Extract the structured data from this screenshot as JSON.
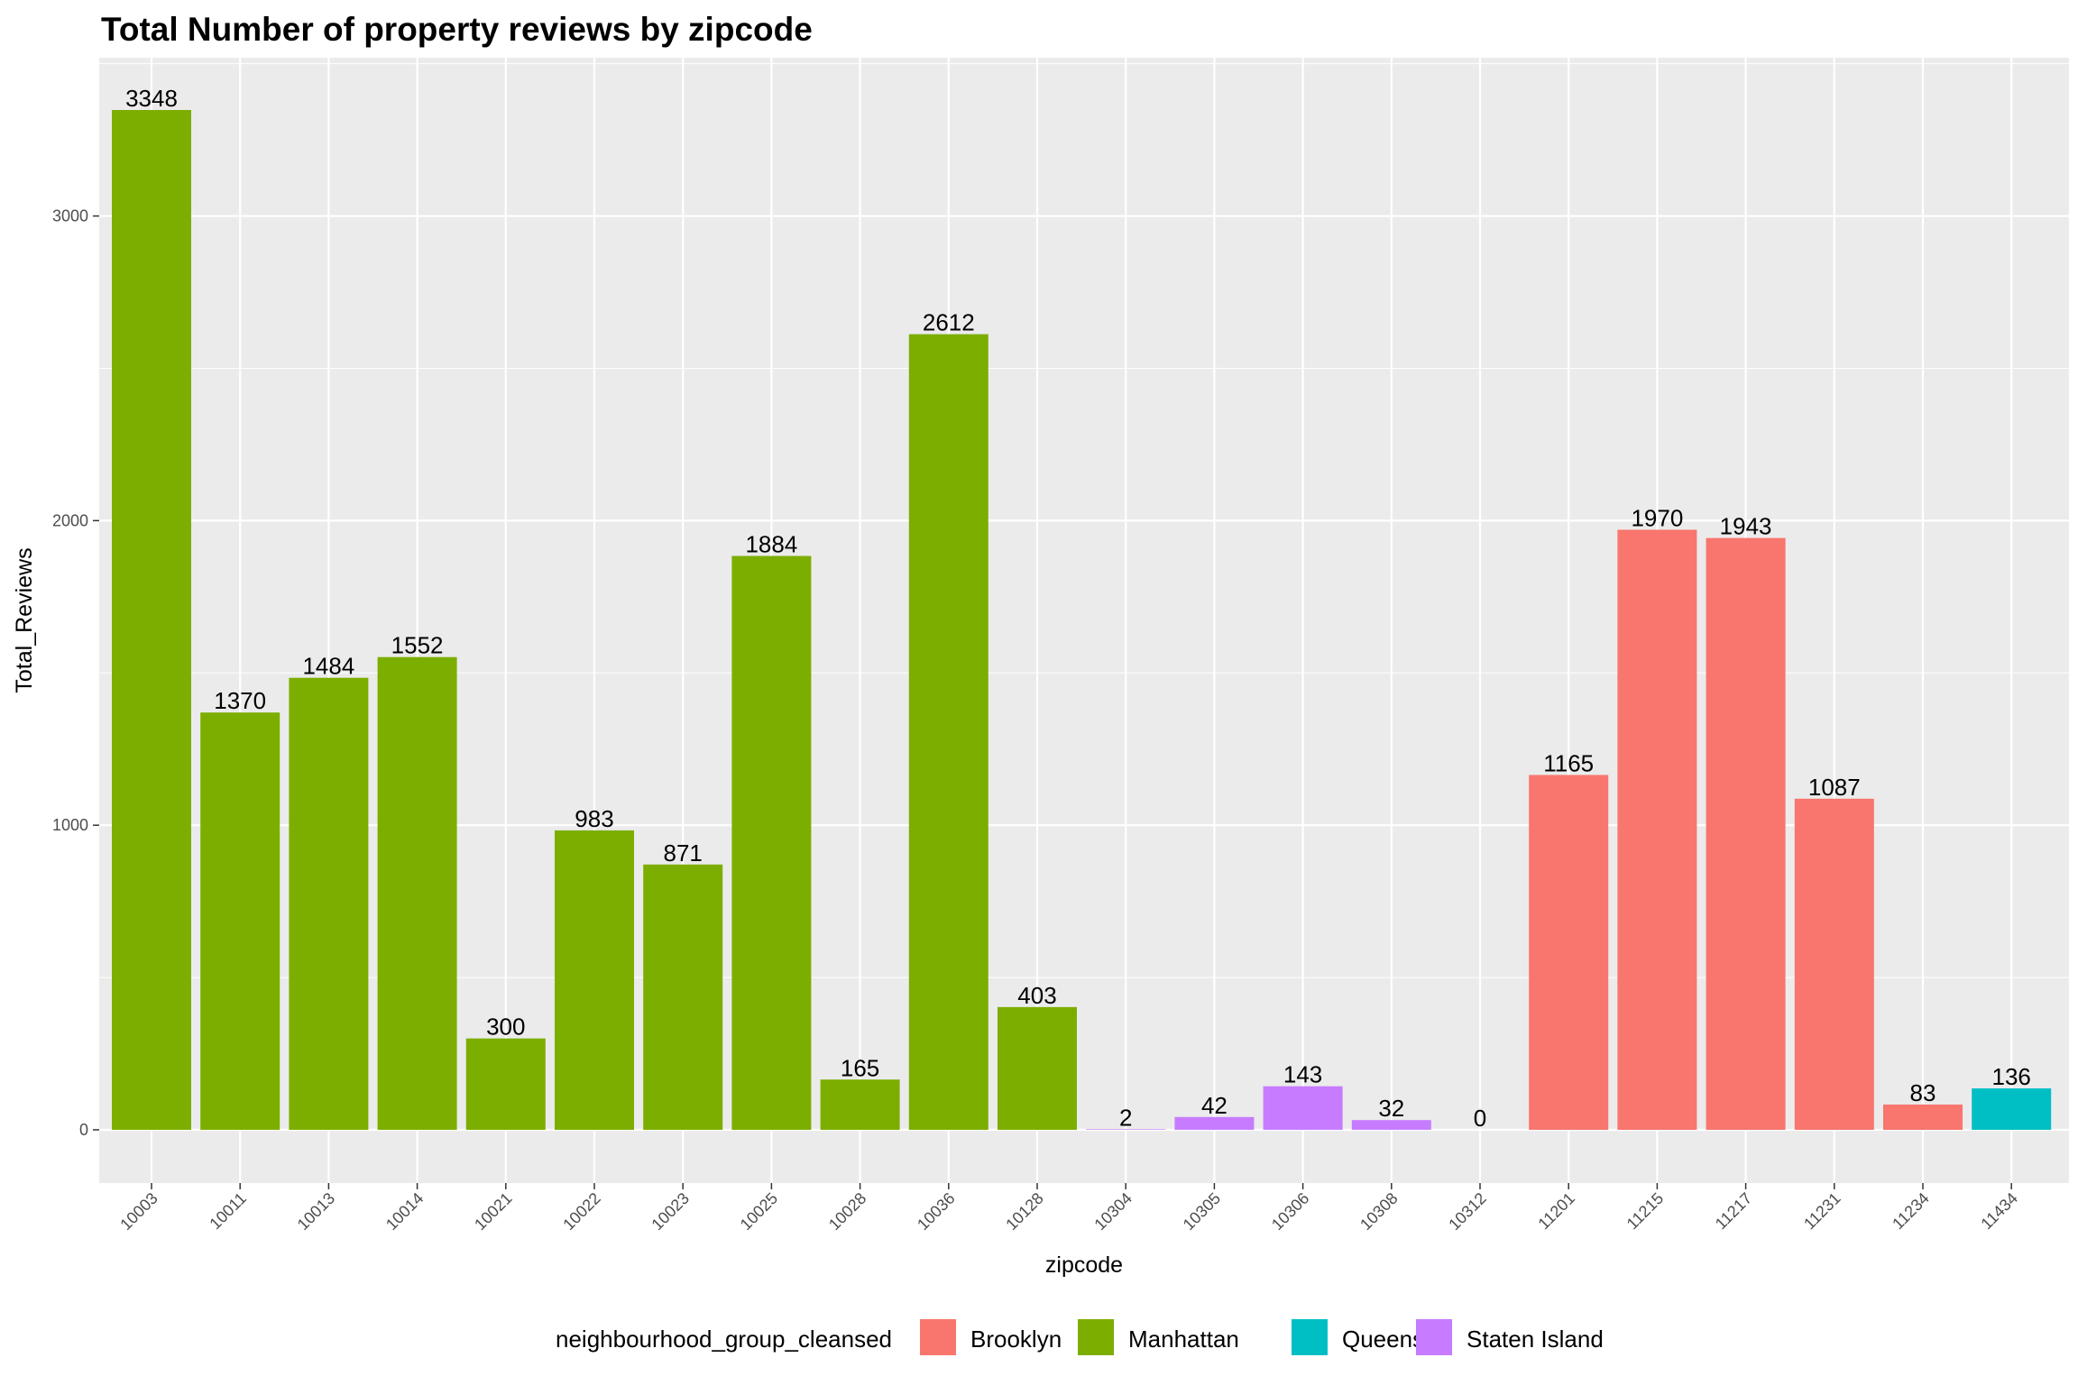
{
  "chart_data": {
    "type": "bar",
    "title": "Total Number of property reviews by zipcode",
    "xlabel": "zipcode",
    "ylabel": "Total_Reviews",
    "ylim": [
      0,
      3500
    ],
    "yticks": [
      0,
      1000,
      2000,
      3000
    ],
    "grid": true,
    "legend_position": "bottom",
    "legend_title": "neighbourhood_group_cleansed",
    "groups": [
      {
        "name": "Brooklyn",
        "color": "#F8766D"
      },
      {
        "name": "Manhattan",
        "color": "#7CAE00"
      },
      {
        "name": "Queens",
        "color": "#00BFC4"
      },
      {
        "name": "Staten Island",
        "color": "#C77CFF"
      }
    ],
    "categories": [
      "10003",
      "10011",
      "10013",
      "10014",
      "10021",
      "10022",
      "10023",
      "10025",
      "10028",
      "10036",
      "10128",
      "10304",
      "10305",
      "10306",
      "10308",
      "10312",
      "11201",
      "11215",
      "11217",
      "11231",
      "11234",
      "11434"
    ],
    "values": [
      3348,
      1370,
      1484,
      1552,
      300,
      983,
      871,
      1884,
      165,
      2612,
      403,
      2,
      42,
      143,
      32,
      0,
      1165,
      1970,
      1943,
      1087,
      83,
      136
    ],
    "group_of_bar": [
      "Manhattan",
      "Manhattan",
      "Manhattan",
      "Manhattan",
      "Manhattan",
      "Manhattan",
      "Manhattan",
      "Manhattan",
      "Manhattan",
      "Manhattan",
      "Manhattan",
      "Staten Island",
      "Staten Island",
      "Staten Island",
      "Staten Island",
      "Staten Island",
      "Brooklyn",
      "Brooklyn",
      "Brooklyn",
      "Brooklyn",
      "Brooklyn",
      "Queens"
    ]
  }
}
